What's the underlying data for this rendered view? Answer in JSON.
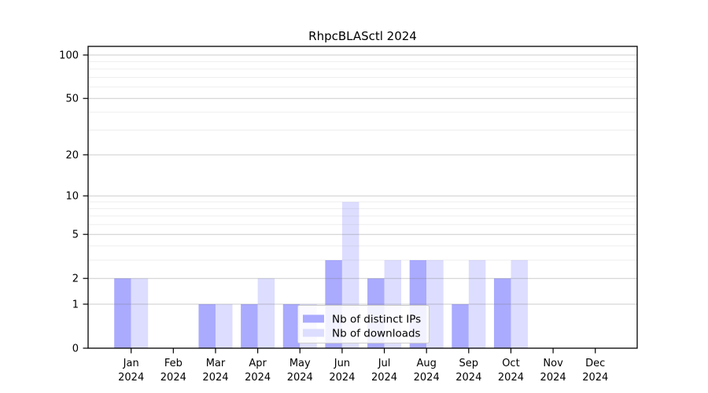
{
  "chart_data": {
    "type": "bar",
    "title": "RhpcBLASctl 2024",
    "x_categories": [
      "Jan",
      "Feb",
      "Mar",
      "Apr",
      "May",
      "Jun",
      "Jul",
      "Aug",
      "Sep",
      "Oct",
      "Nov",
      "Dec"
    ],
    "x_year_label": "2024",
    "y_ticks": [
      0,
      1,
      2,
      5,
      10,
      20,
      50,
      100
    ],
    "y_minor_gridline_values": [
      3,
      4,
      6,
      7,
      8,
      9,
      30,
      40,
      60,
      70,
      80,
      90
    ],
    "y_scale": "log10(value+1)",
    "ylim": [
      0,
      100
    ],
    "grid": "on",
    "legend_position": "inside-bottom-center",
    "series": [
      {
        "name": "Nb of distinct IPs",
        "color": "#aaaaff",
        "values": [
          2,
          0,
          1,
          1,
          1,
          3,
          2,
          3,
          1,
          2,
          0,
          0
        ]
      },
      {
        "name": "Nb of downloads",
        "color": "#ddddff",
        "values": [
          2,
          0,
          1,
          2,
          1,
          9,
          3,
          3,
          3,
          3,
          0,
          0
        ]
      }
    ],
    "colors": {
      "axis": "#000000",
      "major_grid_rgba": "rgba(120,120,120,0.38)",
      "minor_grid_rgba": "rgba(120,120,120,0.13)",
      "legend_border": "#cccccc",
      "background": "#ffffff"
    }
  }
}
